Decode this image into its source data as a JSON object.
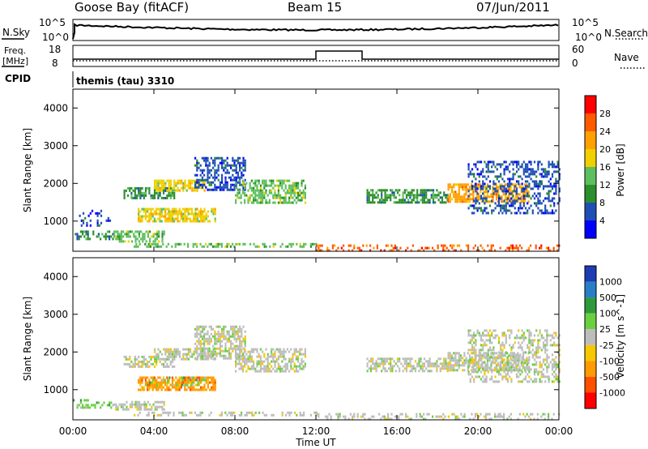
{
  "header": {
    "station": "Goose Bay (fitACF)",
    "beam": "Beam 15",
    "date": "07/Jun/2011"
  },
  "noise_panel": {
    "left_label": "N.Sky",
    "right_label": "N.Search",
    "left_ticks": [
      "10^5",
      "10^0"
    ],
    "right_ticks": [
      "10^5",
      "10^0"
    ]
  },
  "freq_panel": {
    "left_label": "Freq.",
    "left_unit": "[MHz]",
    "right_label": "Nave",
    "left_ticks": [
      "18",
      "8"
    ],
    "right_ticks": [
      "60",
      "0"
    ]
  },
  "cpid_panel": {
    "label": "CPID",
    "program": "themis (tau) 3310"
  },
  "colors": {
    "power": [
      "#0000ff",
      "#1f4fb4",
      "#2b8f2b",
      "#5fbf5f",
      "#f0d000",
      "#ff9f00",
      "#ff5a00",
      "#ff0000"
    ],
    "velocity": [
      "#1e3cb4",
      "#2a7ec8",
      "#2e9a3c",
      "#6ad040",
      "#bdbdbd",
      "#f5c800",
      "#ff9a00",
      "#ff5000",
      "#ff0000"
    ]
  },
  "chart_data": [
    {
      "type": "heatmap",
      "title": "",
      "xlabel": "",
      "ylabel": "Slant Range [km]",
      "xlim": [
        0,
        24
      ],
      "ylim": [
        200,
        4500
      ],
      "yticks": [
        1000,
        2000,
        3000,
        4000
      ],
      "colorbar_label": "Power [dB]",
      "colorbar_ticks": [
        "4",
        "8",
        "12",
        "16",
        "20",
        "24",
        "28"
      ],
      "bands": [
        {
          "t0": 0.0,
          "t1": 2.0,
          "r0": 500,
          "r1": 750,
          "color": 2,
          "density": 0.5
        },
        {
          "t0": 0.3,
          "t1": 1.8,
          "r0": 900,
          "r1": 1300,
          "color": 1,
          "density": 0.25
        },
        {
          "t0": 2.0,
          "t1": 4.5,
          "r0": 450,
          "r1": 750,
          "color": 3,
          "density": 0.6
        },
        {
          "t0": 2.5,
          "t1": 5.0,
          "r0": 1600,
          "r1": 1900,
          "color": 2,
          "density": 0.6
        },
        {
          "t0": 3.2,
          "t1": 7.0,
          "r0": 1000,
          "r1": 1350,
          "color": 4,
          "density": 0.75
        },
        {
          "t0": 4.0,
          "t1": 6.5,
          "r0": 1800,
          "r1": 2100,
          "color": 4,
          "density": 0.75
        },
        {
          "t0": 6.0,
          "t1": 8.5,
          "r0": 1800,
          "r1": 2700,
          "color": 1,
          "density": 0.55
        },
        {
          "t0": 8.0,
          "t1": 11.5,
          "r0": 1500,
          "r1": 2100,
          "color": 3,
          "density": 0.6
        },
        {
          "t0": 3.0,
          "t1": 12.0,
          "r0": 300,
          "r1": 420,
          "color": 3,
          "density": 0.45
        },
        {
          "t0": 12.0,
          "t1": 24.0,
          "r0": 250,
          "r1": 380,
          "color": 6,
          "density": 0.35
        },
        {
          "t0": 14.5,
          "t1": 18.5,
          "r0": 1500,
          "r1": 1850,
          "color": 2,
          "density": 0.6
        },
        {
          "t0": 18.5,
          "t1": 22.5,
          "r0": 1500,
          "r1": 2000,
          "color": 5,
          "density": 0.65
        },
        {
          "t0": 19.5,
          "t1": 24.0,
          "r0": 1200,
          "r1": 2600,
          "color": 1,
          "density": 0.4
        }
      ]
    },
    {
      "type": "heatmap",
      "title": "",
      "xlabel": "Time UT",
      "ylabel": "Slant Range [km]",
      "xlim": [
        0,
        24
      ],
      "ylim": [
        200,
        4500
      ],
      "yticks": [
        1000,
        2000,
        3000,
        4000
      ],
      "xticks": [
        "00:00",
        "04:00",
        "08:00",
        "12:00",
        "16:00",
        "20:00",
        "00:00"
      ],
      "colorbar_label": "Velocity [m s^-1]",
      "colorbar_ticks": [
        "1000",
        "500",
        "100",
        "25",
        "-25",
        "-100",
        "-500",
        "-1000"
      ],
      "bands": [
        {
          "t0": 0.0,
          "t1": 2.0,
          "r0": 500,
          "r1": 750,
          "color": 3,
          "density": 0.45
        },
        {
          "t0": 2.0,
          "t1": 4.5,
          "r0": 450,
          "r1": 700,
          "color": 4,
          "density": 0.55
        },
        {
          "t0": 2.5,
          "t1": 5.0,
          "r0": 1600,
          "r1": 1900,
          "color": 4,
          "density": 0.55
        },
        {
          "t0": 3.2,
          "t1": 7.0,
          "r0": 1000,
          "r1": 1350,
          "color": 6,
          "density": 0.7
        },
        {
          "t0": 3.5,
          "t1": 6.5,
          "r0": 1150,
          "r1": 1350,
          "color": 3,
          "density": 0.3
        },
        {
          "t0": 4.0,
          "t1": 7.0,
          "r0": 1800,
          "r1": 2100,
          "color": 4,
          "density": 0.6
        },
        {
          "t0": 6.0,
          "t1": 8.5,
          "r0": 1800,
          "r1": 2700,
          "color": 4,
          "density": 0.6
        },
        {
          "t0": 8.0,
          "t1": 11.5,
          "r0": 1500,
          "r1": 2100,
          "color": 4,
          "density": 0.6
        },
        {
          "t0": 3.0,
          "t1": 12.0,
          "r0": 300,
          "r1": 420,
          "color": 4,
          "density": 0.4
        },
        {
          "t0": 12.0,
          "t1": 24.0,
          "r0": 250,
          "r1": 380,
          "color": 4,
          "density": 0.35
        },
        {
          "t0": 14.5,
          "t1": 18.5,
          "r0": 1500,
          "r1": 1850,
          "color": 4,
          "density": 0.6
        },
        {
          "t0": 18.5,
          "t1": 22.5,
          "r0": 1500,
          "r1": 2000,
          "color": 4,
          "density": 0.65
        },
        {
          "t0": 19.5,
          "t1": 24.0,
          "r0": 1200,
          "r1": 2600,
          "color": 4,
          "density": 0.4
        }
      ]
    }
  ]
}
